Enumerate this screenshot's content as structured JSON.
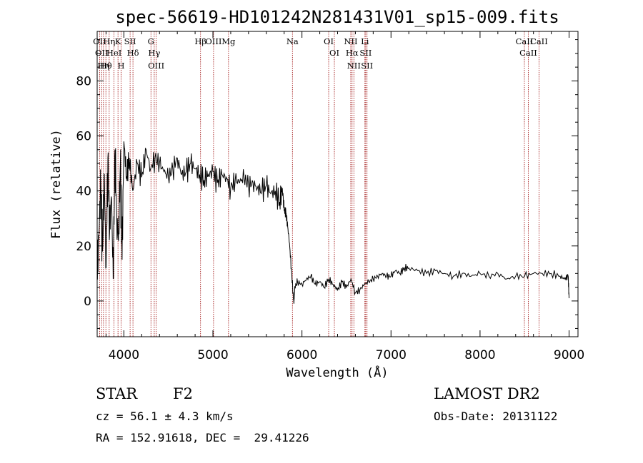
{
  "chart_data": {
    "type": "line",
    "title": "spec-56619-HD101242N281431V01_sp15-009.fits",
    "xlabel": "Wavelength (Å)",
    "ylabel": "Flux (relative)",
    "xlim": [
      3700,
      9100
    ],
    "ylim": [
      -13,
      98
    ],
    "x_ticks": [
      4000,
      5000,
      6000,
      7000,
      8000,
      9000
    ],
    "y_ticks": [
      0,
      20,
      40,
      60,
      80
    ],
    "x_tick_labels": [
      "4000",
      "5000",
      "6000",
      "7000",
      "8000",
      "9000"
    ],
    "y_tick_labels": [
      "0",
      "20",
      "40",
      "60",
      "80"
    ],
    "grid": false,
    "line_color": "#000000",
    "marker_color": "#990000",
    "series": [
      {
        "x": [
          3700,
          3720,
          3740,
          3760,
          3780,
          3800,
          3820,
          3840,
          3860,
          3880,
          3900,
          3920,
          3940,
          3960,
          3980,
          4000,
          4030,
          4060,
          4100,
          4150,
          4200,
          4250,
          4300,
          4350,
          4400,
          4450,
          4500,
          4550,
          4600,
          4650,
          4700,
          4750,
          4800,
          4850,
          4900,
          4950,
          5000,
          5050,
          5100,
          5150,
          5200,
          5250,
          5300,
          5350,
          5400,
          5450,
          5500,
          5550,
          5600,
          5650,
          5700,
          5750,
          5780,
          5800,
          5820,
          5840,
          5860,
          5880,
          5900,
          5910,
          5920,
          5950,
          6000,
          6050,
          6100,
          6150,
          6200,
          6250,
          6300,
          6350,
          6400,
          6450,
          6500,
          6550,
          6600,
          6650,
          6700,
          6750,
          6800,
          6850,
          6900,
          6950,
          7000,
          7050,
          7100,
          7150,
          7200,
          7300,
          7400,
          7500,
          7600,
          7700,
          7800,
          7900,
          8000,
          8100,
          8200,
          8300,
          8400,
          8500,
          8600,
          8700,
          8800,
          8900,
          8950,
          8990,
          9000
        ],
        "y": [
          10,
          25,
          42,
          18,
          46,
          12,
          52,
          25,
          38,
          8,
          55,
          30,
          22,
          50,
          15,
          58,
          45,
          52,
          40,
          50,
          45,
          55,
          48,
          52,
          50,
          47,
          45,
          48,
          52,
          46,
          47,
          50,
          48,
          46,
          44,
          46,
          47,
          43,
          46,
          45,
          41,
          44,
          43,
          45,
          42,
          43,
          41,
          40,
          42,
          39,
          40,
          36,
          41,
          33,
          32,
          27,
          21,
          12,
          3,
          -1,
          5,
          7,
          6,
          8,
          9,
          6,
          7,
          5,
          8,
          6,
          4,
          7,
          5,
          8,
          3,
          4,
          6,
          7,
          8,
          9,
          10,
          9,
          9,
          11,
          10,
          12,
          12,
          11,
          10,
          11,
          10,
          9,
          10,
          9,
          10,
          9,
          10,
          8,
          9,
          9,
          10,
          10,
          10,
          9,
          8,
          9,
          1
        ]
      }
    ],
    "lines": [
      {
        "x": 3727,
        "label": "OII"
      },
      {
        "x": 3750,
        "label": "OII"
      },
      {
        "x": 3771,
        "label": "Hη"
      },
      {
        "x": 3798,
        "label": "Hθ"
      },
      {
        "x": 3835,
        "label": "Hη"
      },
      {
        "x": 3889,
        "label": "HeI"
      },
      {
        "x": 3934,
        "label": "K"
      },
      {
        "x": 3969,
        "label": "H"
      },
      {
        "x": 4070,
        "label": "SII"
      },
      {
        "x": 4102,
        "label": "Hδ"
      },
      {
        "x": 4304,
        "label": "G"
      },
      {
        "x": 4341,
        "label": "Hγ"
      },
      {
        "x": 4363,
        "label": "OIII"
      },
      {
        "x": 4861,
        "label": "Hβ"
      },
      {
        "x": 5007,
        "label": "OIII"
      },
      {
        "x": 5175,
        "label": "Mg"
      },
      {
        "x": 5893,
        "label": "Na"
      },
      {
        "x": 6300,
        "label": "OI"
      },
      {
        "x": 6364,
        "label": "OI"
      },
      {
        "x": 6548,
        "label": "NII"
      },
      {
        "x": 6563,
        "label": "Hα"
      },
      {
        "x": 6583,
        "label": "NII"
      },
      {
        "x": 6707,
        "label": "Li"
      },
      {
        "x": 6716,
        "label": "SII"
      },
      {
        "x": 6731,
        "label": "SII"
      },
      {
        "x": 8498,
        "label": "CaII"
      },
      {
        "x": 8542,
        "label": "CaII"
      },
      {
        "x": 8662,
        "label": "CaII"
      }
    ]
  },
  "info": {
    "object_class": "STAR",
    "subclass": "F2",
    "survey": "LAMOST DR2",
    "velocity": "cz = 56.1 ± 4.3 km/s",
    "obs_date": "Obs-Date: 20131122",
    "coords": "RA = 152.91618, DEC =  29.41226"
  }
}
